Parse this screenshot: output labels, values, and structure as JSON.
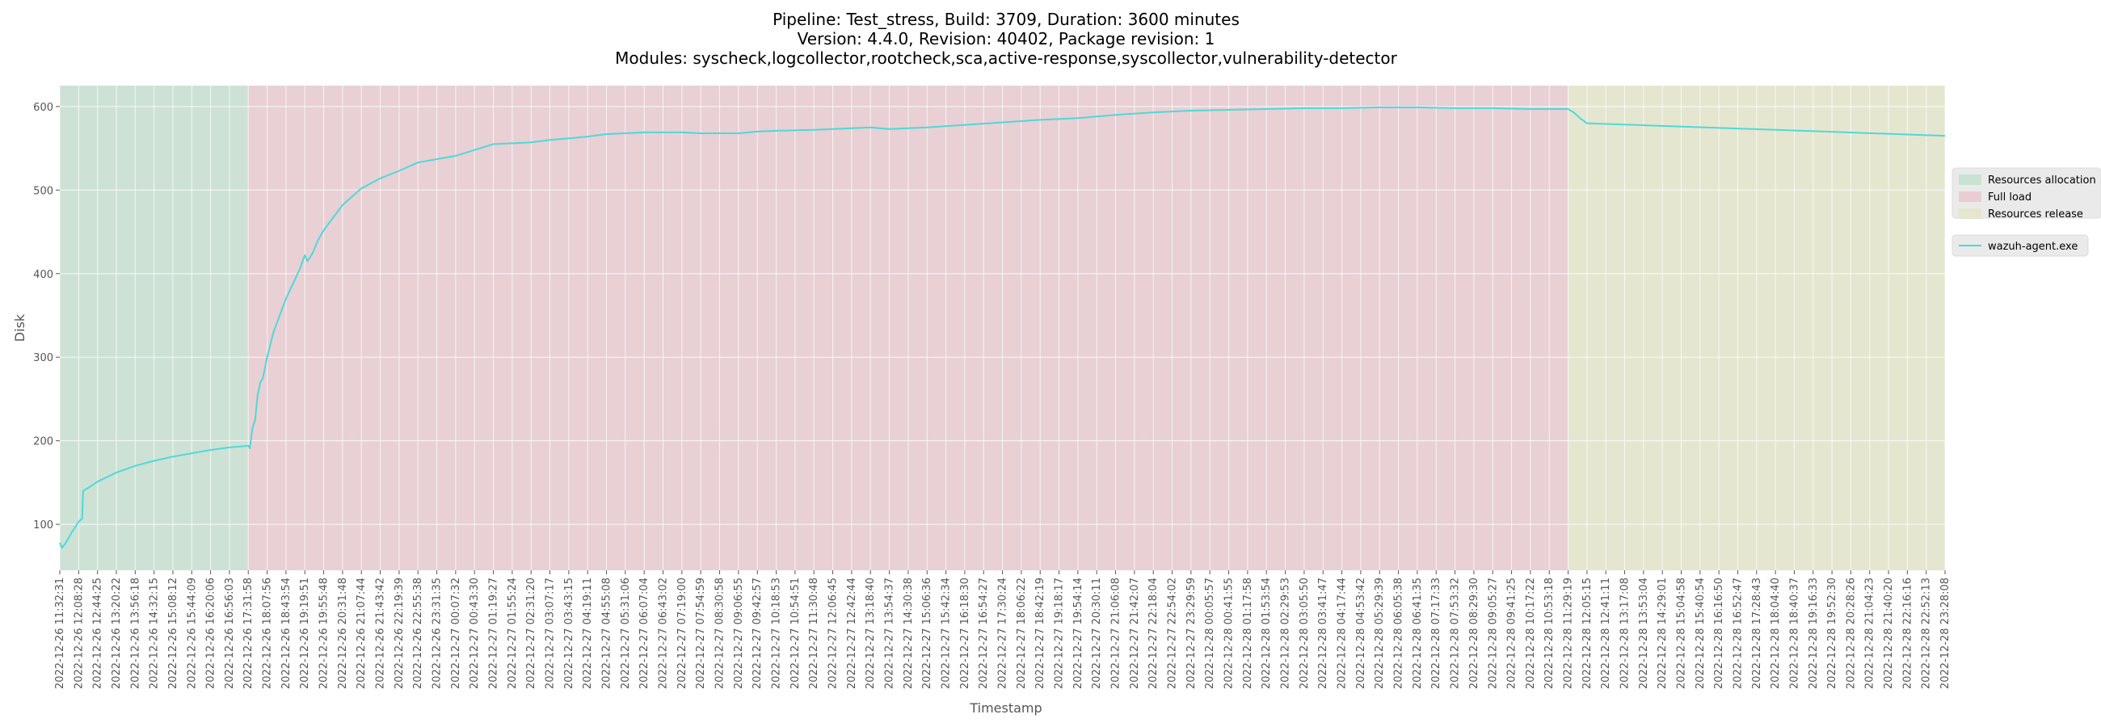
{
  "colors": {
    "plot_bg": "#e5e5e5",
    "grid": "#ffffff",
    "line": "#4ed9d7",
    "phase_allocation": "#c9e2d2",
    "phase_full_load": "#e9cdd2",
    "phase_release": "#e5e6cc",
    "tick_text": "#555555"
  },
  "chart_data": {
    "type": "line",
    "title": [
      "Pipeline: Test_stress, Build: 3709, Duration: 3600 minutes",
      "Version: 4.4.0, Revision: 40402, Package revision: 1",
      "Modules: syscheck,logcollector,rootcheck,sca,active-response,syscollector,vulnerability-detector"
    ],
    "xlabel": "Timestamp",
    "ylabel": "Disk",
    "ylim": [
      45,
      625
    ],
    "yticks": [
      100,
      200,
      300,
      400,
      500,
      600
    ],
    "xlim": [
      "2022-12-26 11:32:31",
      "2022-12-28 23:28:08"
    ],
    "xtick_labels": [
      "2022-12-26 11:32:31",
      "2022-12-26 12:08:28",
      "2022-12-26 12:44:25",
      "2022-12-26 13:20:22",
      "2022-12-26 13:56:18",
      "2022-12-26 14:32:15",
      "2022-12-26 15:08:12",
      "2022-12-26 15:44:09",
      "2022-12-26 16:20:06",
      "2022-12-26 16:56:03",
      "2022-12-26 17:31:58",
      "2022-12-26 18:07:56",
      "2022-12-26 18:43:54",
      "2022-12-26 19:19:51",
      "2022-12-26 19:55:48",
      "2022-12-26 20:31:48",
      "2022-12-26 21:07:44",
      "2022-12-26 21:43:42",
      "2022-12-26 22:19:39",
      "2022-12-26 22:55:38",
      "2022-12-26 23:31:35",
      "2022-12-27 00:07:32",
      "2022-12-27 00:43:30",
      "2022-12-27 01:19:27",
      "2022-12-27 01:55:24",
      "2022-12-27 02:31:20",
      "2022-12-27 03:07:17",
      "2022-12-27 03:43:15",
      "2022-12-27 04:19:11",
      "2022-12-27 04:55:08",
      "2022-12-27 05:31:06",
      "2022-12-27 06:07:04",
      "2022-12-27 06:43:02",
      "2022-12-27 07:19:00",
      "2022-12-27 07:54:59",
      "2022-12-27 08:30:58",
      "2022-12-27 09:06:55",
      "2022-12-27 09:42:57",
      "2022-12-27 10:18:53",
      "2022-12-27 10:54:51",
      "2022-12-27 11:30:48",
      "2022-12-27 12:06:45",
      "2022-12-27 12:42:44",
      "2022-12-27 13:18:40",
      "2022-12-27 13:54:37",
      "2022-12-27 14:30:38",
      "2022-12-27 15:06:36",
      "2022-12-27 15:42:34",
      "2022-12-27 16:18:30",
      "2022-12-27 16:54:27",
      "2022-12-27 17:30:24",
      "2022-12-27 18:06:22",
      "2022-12-27 18:42:19",
      "2022-12-27 19:18:17",
      "2022-12-27 19:54:14",
      "2022-12-27 20:30:11",
      "2022-12-27 21:06:08",
      "2022-12-27 21:42:07",
      "2022-12-27 22:18:04",
      "2022-12-27 22:54:02",
      "2022-12-27 23:29:59",
      "2022-12-28 00:05:57",
      "2022-12-28 00:41:55",
      "2022-12-28 01:17:58",
      "2022-12-28 01:53:54",
      "2022-12-28 02:29:53",
      "2022-12-28 03:05:50",
      "2022-12-28 03:41:47",
      "2022-12-28 04:17:44",
      "2022-12-28 04:53:42",
      "2022-12-28 05:29:39",
      "2022-12-28 06:05:38",
      "2022-12-28 06:41:35",
      "2022-12-28 07:17:33",
      "2022-12-28 07:53:32",
      "2022-12-28 08:29:30",
      "2022-12-28 09:05:27",
      "2022-12-28 09:41:25",
      "2022-12-28 10:17:22",
      "2022-12-28 10:53:18",
      "2022-12-28 11:29:19",
      "2022-12-28 12:05:15",
      "2022-12-28 12:41:11",
      "2022-12-28 13:17:08",
      "2022-12-28 13:53:04",
      "2022-12-28 14:29:01",
      "2022-12-28 15:04:58",
      "2022-12-28 15:40:54",
      "2022-12-28 16:16:50",
      "2022-12-28 16:52:47",
      "2022-12-28 17:28:43",
      "2022-12-28 18:04:40",
      "2022-12-28 18:40:37",
      "2022-12-28 19:16:33",
      "2022-12-28 19:52:30",
      "2022-12-28 20:28:26",
      "2022-12-28 21:04:23",
      "2022-12-28 21:40:20",
      "2022-12-28 22:16:16",
      "2022-12-28 22:52:13",
      "2022-12-28 23:28:08"
    ],
    "phases": [
      {
        "name": "Resources allocation",
        "start": "2022-12-26 11:32:31",
        "end": "2022-12-26 17:31:58"
      },
      {
        "name": "Full load",
        "start": "2022-12-26 17:31:58",
        "end": "2022-12-28 11:29:19"
      },
      {
        "name": "Resources release",
        "start": "2022-12-28 11:29:19",
        "end": "2022-12-28 23:28:08"
      }
    ],
    "series": [
      {
        "name": "wazuh-agent.exe",
        "points": [
          [
            "2022-12-26 11:32:31",
            78
          ],
          [
            "2022-12-26 11:37:00",
            72
          ],
          [
            "2022-12-26 11:44:00",
            78
          ],
          [
            "2022-12-26 11:55:00",
            90
          ],
          [
            "2022-12-26 12:08:28",
            103
          ],
          [
            "2022-12-26 12:15:00",
            107
          ],
          [
            "2022-12-26 12:17:00",
            140
          ],
          [
            "2022-12-26 12:30:00",
            145
          ],
          [
            "2022-12-26 12:44:25",
            151
          ],
          [
            "2022-12-26 13:20:22",
            162
          ],
          [
            "2022-12-26 13:56:18",
            170
          ],
          [
            "2022-12-26 14:32:15",
            176
          ],
          [
            "2022-12-26 15:08:12",
            181
          ],
          [
            "2022-12-26 15:44:09",
            185
          ],
          [
            "2022-12-26 16:20:06",
            189
          ],
          [
            "2022-12-26 16:56:03",
            192
          ],
          [
            "2022-12-26 17:31:58",
            194
          ],
          [
            "2022-12-26 17:35:00",
            191
          ],
          [
            "2022-12-26 17:40:00",
            215
          ],
          [
            "2022-12-26 17:45:00",
            225
          ],
          [
            "2022-12-26 17:50:00",
            255
          ],
          [
            "2022-12-26 17:55:00",
            270
          ],
          [
            "2022-12-26 18:00:00",
            275
          ],
          [
            "2022-12-26 18:07:56",
            300
          ],
          [
            "2022-12-26 18:20:00",
            330
          ],
          [
            "2022-12-26 18:43:54",
            370
          ],
          [
            "2022-12-26 19:10:00",
            405
          ],
          [
            "2022-12-26 19:19:51",
            422
          ],
          [
            "2022-12-26 19:25:00",
            415
          ],
          [
            "2022-12-26 19:35:00",
            425
          ],
          [
            "2022-12-26 19:45:00",
            440
          ],
          [
            "2022-12-26 19:55:48",
            452
          ],
          [
            "2022-12-26 20:31:48",
            482
          ],
          [
            "2022-12-26 21:07:44",
            502
          ],
          [
            "2022-12-26 21:43:42",
            514
          ],
          [
            "2022-12-26 22:19:39",
            523
          ],
          [
            "2022-12-26 22:55:38",
            533
          ],
          [
            "2022-12-26 23:31:35",
            537
          ],
          [
            "2022-12-27 00:07:32",
            541
          ],
          [
            "2022-12-27 00:43:30",
            548
          ],
          [
            "2022-12-27 01:19:27",
            555
          ],
          [
            "2022-12-27 01:55:24",
            556
          ],
          [
            "2022-12-27 02:31:20",
            557
          ],
          [
            "2022-12-27 03:07:17",
            560
          ],
          [
            "2022-12-27 03:43:15",
            562
          ],
          [
            "2022-12-27 04:19:11",
            564
          ],
          [
            "2022-12-27 04:55:08",
            567
          ],
          [
            "2022-12-27 05:31:06",
            568
          ],
          [
            "2022-12-27 06:07:04",
            569
          ],
          [
            "2022-12-27 06:43:02",
            569
          ],
          [
            "2022-12-27 07:19:00",
            569
          ],
          [
            "2022-12-27 07:54:59",
            568
          ],
          [
            "2022-12-27 08:30:58",
            568
          ],
          [
            "2022-12-27 09:06:55",
            568
          ],
          [
            "2022-12-27 09:42:57",
            570
          ],
          [
            "2022-12-27 10:18:53",
            571
          ],
          [
            "2022-12-27 11:30:48",
            572
          ],
          [
            "2022-12-27 12:42:44",
            574
          ],
          [
            "2022-12-27 13:18:40",
            575
          ],
          [
            "2022-12-27 13:54:37",
            573
          ],
          [
            "2022-12-27 15:06:36",
            575
          ],
          [
            "2022-12-27 16:18:30",
            578
          ],
          [
            "2022-12-27 17:30:24",
            581
          ],
          [
            "2022-12-27 18:42:19",
            584
          ],
          [
            "2022-12-27 19:54:14",
            586
          ],
          [
            "2022-12-27 21:06:08",
            590
          ],
          [
            "2022-12-27 22:18:04",
            593
          ],
          [
            "2022-12-27 23:29:59",
            595
          ],
          [
            "2022-12-28 00:41:55",
            596
          ],
          [
            "2022-12-28 01:53:54",
            597
          ],
          [
            "2022-12-28 03:05:50",
            598
          ],
          [
            "2022-12-28 04:17:44",
            598
          ],
          [
            "2022-12-28 05:29:39",
            599
          ],
          [
            "2022-12-28 06:41:35",
            599
          ],
          [
            "2022-12-28 07:53:32",
            598
          ],
          [
            "2022-12-28 09:05:27",
            598
          ],
          [
            "2022-12-28 10:17:22",
            597
          ],
          [
            "2022-12-28 11:29:19",
            597
          ],
          [
            "2022-12-28 11:40:00",
            593
          ],
          [
            "2022-12-28 11:52:00",
            586
          ],
          [
            "2022-12-28 12:05:15",
            580
          ],
          [
            "2022-12-28 23:28:08",
            565
          ]
        ]
      }
    ],
    "legend": {
      "placement": "right",
      "phase_entries": [
        "Resources allocation",
        "Full load",
        "Resources release"
      ],
      "series_entries": [
        "wazuh-agent.exe"
      ]
    }
  }
}
